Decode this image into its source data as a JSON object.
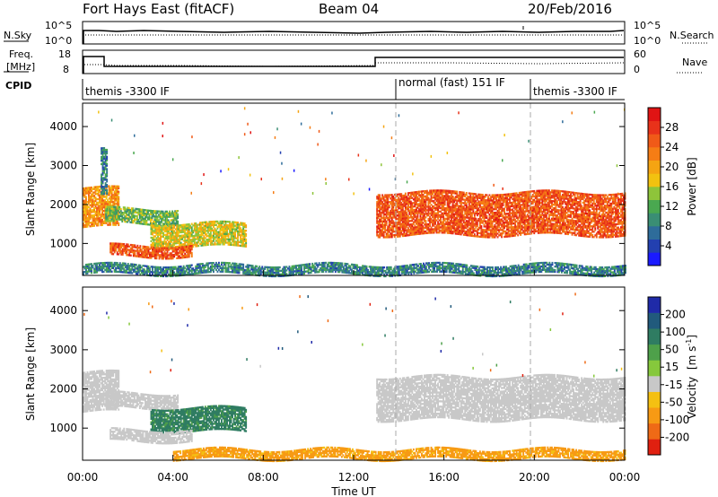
{
  "header": {
    "station": "Fort Hays East (fitACF)",
    "beam": "Beam 04",
    "date": "20/Feb/2016"
  },
  "panels": {
    "sky": {
      "left_label": "N.Sky",
      "left_ticks": [
        "10^5",
        "10^0"
      ],
      "right_label": "N.Search",
      "right_ticks": [
        "10^5",
        "10^0"
      ]
    },
    "freq": {
      "left_label_1": "Freq.",
      "left_label_2": "[MHz]",
      "left_ticks": [
        "18",
        "8"
      ],
      "right_label": "Nave",
      "right_ticks": [
        "60",
        "0"
      ]
    },
    "cpid": {
      "label": "CPID",
      "segments": [
        "themis -3300 IF",
        "normal (fast) 151 IF",
        "themis -3300 IF"
      ]
    }
  },
  "colorbars": {
    "power": {
      "label": "Power [dB]",
      "ticks": [
        "28",
        "24",
        "20",
        "16",
        "12",
        "8",
        "4"
      ],
      "colors": [
        "#1a1aff",
        "#2340b0",
        "#2e6c9a",
        "#3a8e74",
        "#4aa850",
        "#8ec43a",
        "#f2c210",
        "#f5a412",
        "#f57d15",
        "#f05a18",
        "#e8321a",
        "#e01414"
      ]
    },
    "velocity": {
      "label_main": "Velocity",
      "label_unit": "[m s",
      "label_exp": "-1",
      "label_close": "]",
      "ticks": [
        "200",
        "100",
        "50",
        "15",
        "-15",
        "-50",
        "-100",
        "-200"
      ],
      "colors": [
        "#1f2aa8",
        "#215a7c",
        "#2f7c62",
        "#4ea04a",
        "#86c83c",
        "#c8c8c8",
        "#f4c012",
        "#f79a14",
        "#ef6a16",
        "#e02010"
      ]
    }
  },
  "axes": {
    "ylabel": "Slant Range [km]",
    "yticks": [
      "4000",
      "3000",
      "2000",
      "1000"
    ],
    "xticks": [
      "00:00",
      "04:00",
      "08:00",
      "12:00",
      "16:00",
      "20:00",
      "00:00"
    ],
    "xlabel": "Time UT"
  },
  "chart_data": [
    {
      "type": "heatmap",
      "title": "Power",
      "xlabel": "Time UT",
      "ylabel": "Slant Range [km]",
      "x_range_hours": [
        0,
        24
      ],
      "y_range_km": [
        180,
        4600
      ],
      "colorbar": "Power [dB]",
      "echo_regions": [
        {
          "t_start_h": 0.0,
          "t_end_h": 1.6,
          "range_low_km": 1400,
          "range_high_km": 2400,
          "power_db": 20
        },
        {
          "t_start_h": 0.8,
          "t_end_h": 1.1,
          "range_low_km": 2200,
          "range_high_km": 3400,
          "power_db": 8
        },
        {
          "t_start_h": 1.0,
          "t_end_h": 4.2,
          "range_low_km": 1500,
          "range_high_km": 1900,
          "power_db": 12
        },
        {
          "t_start_h": 3.0,
          "t_end_h": 7.2,
          "range_low_km": 900,
          "range_high_km": 1500,
          "power_db": 16
        },
        {
          "t_start_h": 1.2,
          "t_end_h": 4.8,
          "range_low_km": 650,
          "range_high_km": 950,
          "power_db": 24
        },
        {
          "t_start_h": 13.0,
          "t_end_h": 24.0,
          "range_low_km": 1200,
          "range_high_km": 2300,
          "power_db": 24
        },
        {
          "t_start_h": 0.0,
          "t_end_h": 24.0,
          "range_low_km": 200,
          "range_high_km": 450,
          "power_db": 8
        }
      ]
    },
    {
      "type": "heatmap",
      "title": "Velocity",
      "xlabel": "Time UT",
      "ylabel": "Slant Range [km]",
      "x_range_hours": [
        0,
        24
      ],
      "y_range_km": [
        180,
        4600
      ],
      "colorbar": "Velocity [m s-1]",
      "echo_regions": [
        {
          "t_start_h": 0.0,
          "t_end_h": 1.6,
          "range_low_km": 1400,
          "range_high_km": 2400,
          "velocity": 0
        },
        {
          "t_start_h": 1.0,
          "t_end_h": 4.2,
          "range_low_km": 1500,
          "range_high_km": 1900,
          "velocity": 0
        },
        {
          "t_start_h": 3.0,
          "t_end_h": 7.2,
          "range_low_km": 900,
          "range_high_km": 1500,
          "velocity": 50
        },
        {
          "t_start_h": 1.2,
          "t_end_h": 4.8,
          "range_low_km": 650,
          "range_high_km": 950,
          "velocity": 0
        },
        {
          "t_start_h": 13.0,
          "t_end_h": 24.0,
          "range_low_km": 1200,
          "range_high_km": 2300,
          "velocity": 0
        },
        {
          "t_start_h": 4.0,
          "t_end_h": 24.0,
          "range_low_km": 200,
          "range_high_km": 450,
          "velocity": -50
        }
      ]
    }
  ]
}
